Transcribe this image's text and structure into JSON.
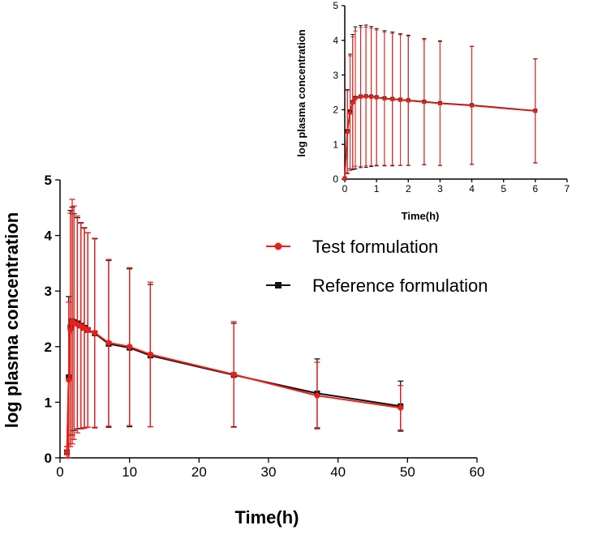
{
  "colors": {
    "test": "#e8201a",
    "reference": "#111111",
    "axis": "#000000"
  },
  "legend": {
    "test_label": "Test formulation",
    "reference_label": "Reference formulation"
  },
  "chart_data": [
    {
      "id": "main",
      "type": "line",
      "title": "",
      "xlabel": "Time(h)",
      "ylabel": "log  plasma concentration",
      "xlim": [
        0,
        60
      ],
      "ylim": [
        0,
        5
      ],
      "xticks": [
        0,
        10,
        20,
        30,
        40,
        50,
        60
      ],
      "yticks": [
        0,
        1,
        2,
        3,
        4,
        5
      ],
      "series": [
        {
          "name": "Test formulation",
          "color_key": "test",
          "marker": "circle",
          "x": [
            1,
            1.25,
            1.5,
            1.75,
            2,
            2.5,
            3,
            3.5,
            4,
            5,
            7,
            10,
            13,
            25,
            37,
            49
          ],
          "y": [
            0.1,
            1.4,
            2.3,
            2.45,
            2.43,
            2.4,
            2.37,
            2.33,
            2.3,
            2.25,
            2.07,
            2.0,
            1.86,
            1.5,
            1.12,
            0.9
          ],
          "err_low": [
            0.1,
            1.4,
            2.1,
            2.2,
            2.1,
            1.95,
            1.85,
            1.8,
            1.75,
            1.7,
            1.5,
            1.42,
            1.3,
            0.95,
            0.6,
            0.4
          ],
          "err_high": [
            0.1,
            1.4,
            2.1,
            2.2,
            2.1,
            1.95,
            1.85,
            1.8,
            1.75,
            1.7,
            1.5,
            1.42,
            1.3,
            0.95,
            0.6,
            0.4
          ]
        },
        {
          "name": "Reference formulation",
          "color_key": "reference",
          "marker": "square",
          "x": [
            1,
            1.25,
            1.5,
            1.75,
            2,
            2.5,
            3,
            3.5,
            4,
            5,
            7,
            10,
            13,
            25,
            37,
            49
          ],
          "y": [
            0.1,
            1.45,
            2.35,
            2.46,
            2.44,
            2.42,
            2.38,
            2.34,
            2.3,
            2.24,
            2.05,
            1.98,
            1.84,
            1.49,
            1.16,
            0.93
          ],
          "err_low": [
            0.1,
            1.45,
            2.1,
            2.05,
            1.95,
            1.9,
            1.85,
            1.8,
            1.75,
            1.7,
            1.5,
            1.42,
            1.28,
            0.93,
            0.62,
            0.45
          ],
          "err_high": [
            0.1,
            1.45,
            2.1,
            2.05,
            1.95,
            1.9,
            1.85,
            1.8,
            1.75,
            1.7,
            1.5,
            1.42,
            1.28,
            0.93,
            0.62,
            0.45
          ]
        }
      ]
    },
    {
      "id": "inset",
      "type": "line",
      "title": "",
      "xlabel": "Time(h)",
      "ylabel": "log  plasma concentration",
      "xlim": [
        0,
        7
      ],
      "ylim": [
        0,
        5
      ],
      "xticks": [
        0,
        1,
        2,
        3,
        4,
        5,
        6,
        7
      ],
      "yticks": [
        0,
        1,
        2,
        3,
        4,
        5
      ],
      "series": [
        {
          "name": "Test formulation",
          "color_key": "test",
          "marker": "circle",
          "x": [
            0,
            0.083,
            0.167,
            0.25,
            0.333,
            0.5,
            0.667,
            0.833,
            1,
            1.25,
            1.5,
            1.75,
            2,
            2.5,
            3,
            4,
            6
          ],
          "y": [
            0.02,
            1.35,
            1.9,
            2.2,
            2.32,
            2.37,
            2.38,
            2.37,
            2.35,
            2.32,
            2.3,
            2.28,
            2.26,
            2.22,
            2.18,
            2.12,
            1.96
          ],
          "err_low": [
            0.02,
            1.2,
            1.65,
            1.9,
            1.95,
            2.0,
            2.0,
            1.98,
            1.95,
            1.92,
            1.9,
            1.88,
            1.86,
            1.8,
            1.78,
            1.7,
            1.5
          ],
          "err_high": [
            0.02,
            1.2,
            1.65,
            1.9,
            1.95,
            2.0,
            2.0,
            1.98,
            1.95,
            1.92,
            1.9,
            1.88,
            1.86,
            1.8,
            1.78,
            1.7,
            1.5
          ]
        },
        {
          "name": "Reference formulation",
          "color_key": "reference",
          "marker": "square",
          "x": [
            0,
            0.083,
            0.167,
            0.25,
            0.333,
            0.5,
            0.667,
            0.833,
            1,
            1.25,
            1.5,
            1.75,
            2,
            2.5,
            3,
            4,
            6
          ],
          "y": [
            0.02,
            1.38,
            1.95,
            2.22,
            2.34,
            2.38,
            2.39,
            2.38,
            2.36,
            2.33,
            2.31,
            2.29,
            2.27,
            2.23,
            2.19,
            2.13,
            1.97
          ],
          "err_low": [
            0.02,
            1.2,
            1.65,
            1.95,
            2.05,
            2.05,
            2.05,
            2.02,
            1.98,
            1.95,
            1.93,
            1.9,
            1.88,
            1.82,
            1.8,
            1.7,
            1.5
          ],
          "err_high": [
            0.02,
            1.2,
            1.65,
            1.95,
            2.05,
            2.05,
            2.05,
            2.02,
            1.98,
            1.95,
            1.93,
            1.9,
            1.88,
            1.82,
            1.8,
            1.7,
            1.5
          ]
        }
      ]
    }
  ]
}
